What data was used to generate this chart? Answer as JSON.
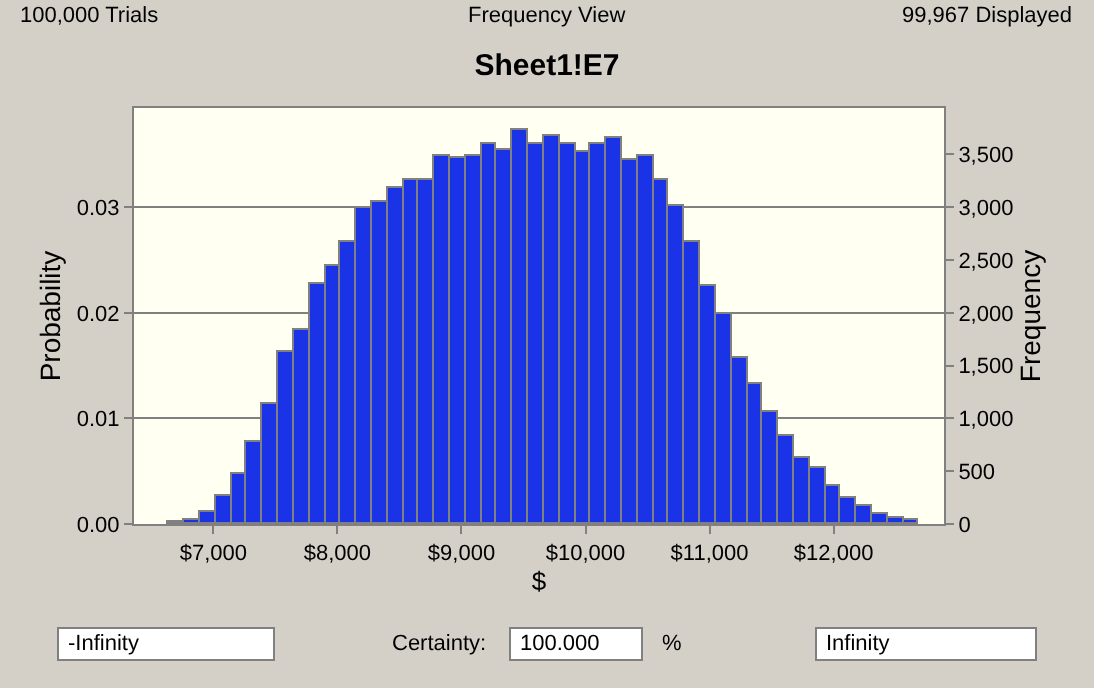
{
  "chart_data": {
    "type": "histogram",
    "title": "Sheet1!E7",
    "xlabel": "$",
    "ylabel": "Probability",
    "y2label": "Frequency",
    "bins": [
      6640,
      6766,
      6892,
      7018,
      7144,
      7270,
      7396,
      7522,
      7648,
      7774,
      7900,
      8026,
      8152,
      8278,
      8404,
      8530,
      8656,
      8782,
      8908,
      9034,
      9160,
      9286,
      9412,
      9538,
      9664,
      9790,
      9916,
      10042,
      10168,
      10294,
      10420,
      10546,
      10672,
      10798,
      10924,
      11050,
      11176,
      11302,
      11428,
      11554,
      11680,
      11806,
      11932,
      12058,
      12184,
      12310,
      12436,
      12562,
      12688
    ],
    "series": [
      {
        "axis": "y2",
        "color": "#1a33e6",
        "values": [
          20,
          40,
          110,
          260,
          470,
          770,
          1130,
          1630,
          1840,
          2270,
          2440,
          2680,
          3000,
          3050,
          3190,
          3260,
          3260,
          3480,
          3470,
          3480,
          3600,
          3550,
          3740,
          3600,
          3670,
          3590,
          3530,
          3600,
          3650,
          3440,
          3480,
          3260,
          3010,
          2680,
          2250,
          1990,
          1570,
          1320,
          1060,
          840,
          620,
          530,
          360,
          240,
          170,
          100,
          60,
          30
        ]
      }
    ],
    "xlim": [
      6360,
      12890
    ],
    "xticks": [
      {
        "value": 7000,
        "label": "$7,000"
      },
      {
        "value": 8000,
        "label": "$8,000"
      },
      {
        "value": 9000,
        "label": "$9,000"
      },
      {
        "value": 10000,
        "label": "$10,000"
      },
      {
        "value": 11000,
        "label": "$11,000"
      },
      {
        "value": 12000,
        "label": "$12,000"
      }
    ],
    "ylim": [
      0,
      0.0394
    ],
    "yticks": [
      {
        "value": 0,
        "label": "0.00"
      },
      {
        "value": 0.01,
        "label": "0.01"
      },
      {
        "value": 0.02,
        "label": "0.02"
      },
      {
        "value": 0.03,
        "label": "0.03"
      }
    ],
    "y2lim": [
      0,
      3940
    ],
    "y2ticks": [
      0,
      500,
      {
        "value": 1000,
        "label": "1,000"
      },
      {
        "value": 1500,
        "label": "1,500"
      },
      {
        "value": 2000,
        "label": "2,000"
      },
      {
        "value": 2500,
        "label": "2,500"
      },
      {
        "value": 3000,
        "label": "3,000"
      },
      {
        "value": 3500,
        "label": "3,500"
      }
    ],
    "grid": "y",
    "annotations": [
      "100,000 Trials",
      "Frequency View",
      "99,967 Displayed",
      "-Infinity",
      "Certainty:",
      "100.000",
      "%",
      "Infinity"
    ]
  }
}
